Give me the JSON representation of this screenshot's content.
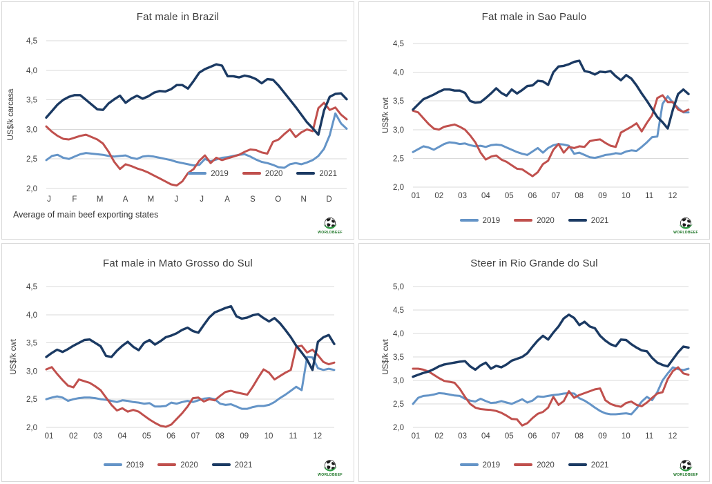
{
  "colors": {
    "2019": "#6494c7",
    "2020": "#c0504d",
    "2021": "#1b3a63",
    "grid": "#d9d9d9",
    "text": "#404040",
    "panel_border": "#d8d8d8",
    "logo_green": "#15701f"
  },
  "logo": {
    "icon": "globe-logo-icon",
    "caption": "WORLDBEEF"
  },
  "chart_data": [
    {
      "type": "line",
      "title": "Fat male in Brazil",
      "ylabel": "US$/k carcasa",
      "xlabel": "",
      "ylim": [
        2.0,
        4.5
      ],
      "ytick_step": 0.5,
      "yticklabels": [
        "2,0",
        "2,5",
        "3,0",
        "3,5",
        "4,0",
        "4,5"
      ],
      "xticklabels": [
        "J",
        "F",
        "M",
        "A",
        "M",
        "J",
        "J",
        "A",
        "S",
        "O",
        "N",
        "D"
      ],
      "grid": "horizontal",
      "legend_position": "inside-bottom-right",
      "footnote": "Average of main beef exporting states",
      "series": [
        {
          "name": "2019",
          "values": [
            2.48,
            2.55,
            2.57,
            2.52,
            2.5,
            2.54,
            2.58,
            2.6,
            2.59,
            2.58,
            2.57,
            2.55,
            2.54,
            2.55,
            2.56,
            2.52,
            2.5,
            2.54,
            2.55,
            2.54,
            2.52,
            2.5,
            2.48,
            2.45,
            2.43,
            2.41,
            2.39,
            2.4,
            2.5,
            2.46,
            2.49,
            2.52,
            2.53,
            2.55,
            2.57,
            2.58,
            2.54,
            2.49,
            2.45,
            2.43,
            2.4,
            2.36,
            2.35,
            2.41,
            2.43,
            2.41,
            2.44,
            2.48,
            2.55,
            2.67,
            2.9,
            3.27,
            3.1,
            3.01
          ]
        },
        {
          "name": "2020",
          "values": [
            3.05,
            2.96,
            2.89,
            2.84,
            2.83,
            2.86,
            2.89,
            2.91,
            2.87,
            2.83,
            2.76,
            2.62,
            2.45,
            2.33,
            2.41,
            2.38,
            2.34,
            2.31,
            2.27,
            2.22,
            2.17,
            2.12,
            2.07,
            2.05,
            2.12,
            2.26,
            2.33,
            2.47,
            2.56,
            2.43,
            2.52,
            2.48,
            2.51,
            2.54,
            2.57,
            2.62,
            2.66,
            2.65,
            2.61,
            2.59,
            2.79,
            2.83,
            2.92,
            3.0,
            2.87,
            2.95,
            3.0,
            2.97,
            3.36,
            3.45,
            3.33,
            3.37,
            3.25,
            3.17
          ]
        },
        {
          "name": "2021",
          "values": [
            3.2,
            3.31,
            3.42,
            3.5,
            3.55,
            3.58,
            3.58,
            3.5,
            3.42,
            3.34,
            3.33,
            3.44,
            3.51,
            3.57,
            3.45,
            3.52,
            3.57,
            3.52,
            3.56,
            3.62,
            3.65,
            3.64,
            3.68,
            3.75,
            3.75,
            3.69,
            3.82,
            3.96,
            4.02,
            4.06,
            4.1,
            4.08,
            3.9,
            3.9,
            3.88,
            3.91,
            3.89,
            3.85,
            3.78,
            3.85,
            3.84,
            3.74,
            3.62,
            3.5,
            3.38,
            3.25,
            3.12,
            3.02,
            2.91,
            3.32,
            3.55,
            3.6,
            3.61,
            3.51
          ]
        }
      ]
    },
    {
      "type": "line",
      "title": "Fat male in Sao Paulo",
      "ylabel": "US$/k cwt",
      "xlabel": "",
      "ylim": [
        2.0,
        4.5
      ],
      "ytick_step": 0.5,
      "yticklabels": [
        "2,0",
        "2,5",
        "3,0",
        "3,5",
        "4,0",
        "4,5"
      ],
      "xticklabels": [
        "01",
        "02",
        "03",
        "04",
        "05",
        "06",
        "07",
        "08",
        "09",
        "10",
        "11",
        "12"
      ],
      "grid": "horizontal",
      "legend_position": "below-center",
      "series": [
        {
          "name": "2019",
          "values": [
            2.61,
            2.66,
            2.71,
            2.69,
            2.65,
            2.7,
            2.75,
            2.78,
            2.77,
            2.75,
            2.76,
            2.73,
            2.71,
            2.72,
            2.7,
            2.73,
            2.74,
            2.73,
            2.69,
            2.65,
            2.61,
            2.58,
            2.56,
            2.62,
            2.68,
            2.6,
            2.68,
            2.73,
            2.75,
            2.74,
            2.72,
            2.58,
            2.6,
            2.56,
            2.52,
            2.51,
            2.53,
            2.56,
            2.57,
            2.59,
            2.58,
            2.62,
            2.64,
            2.63,
            2.7,
            2.78,
            2.87,
            2.88,
            3.45,
            3.58,
            3.47,
            3.38,
            3.3,
            3.3
          ]
        },
        {
          "name": "2020",
          "values": [
            3.33,
            3.3,
            3.2,
            3.1,
            3.02,
            3.0,
            3.05,
            3.07,
            3.09,
            3.05,
            3.0,
            2.9,
            2.78,
            2.6,
            2.48,
            2.53,
            2.55,
            2.48,
            2.44,
            2.38,
            2.32,
            2.31,
            2.25,
            2.19,
            2.26,
            2.4,
            2.46,
            2.65,
            2.75,
            2.6,
            2.7,
            2.68,
            2.71,
            2.7,
            2.8,
            2.82,
            2.83,
            2.77,
            2.72,
            2.7,
            2.95,
            3.0,
            3.05,
            3.11,
            2.97,
            3.12,
            3.25,
            3.55,
            3.6,
            3.48,
            3.48,
            3.35,
            3.31,
            3.35
          ]
        },
        {
          "name": "2021",
          "values": [
            3.35,
            3.44,
            3.53,
            3.57,
            3.61,
            3.66,
            3.7,
            3.7,
            3.68,
            3.68,
            3.64,
            3.5,
            3.47,
            3.48,
            3.55,
            3.63,
            3.72,
            3.64,
            3.59,
            3.7,
            3.63,
            3.69,
            3.76,
            3.77,
            3.85,
            3.84,
            3.78,
            4.0,
            4.1,
            4.11,
            4.14,
            4.18,
            4.2,
            4.02,
            4.0,
            3.96,
            4.01,
            4.0,
            4.02,
            3.93,
            3.86,
            3.95,
            3.89,
            3.77,
            3.63,
            3.5,
            3.36,
            3.22,
            3.13,
            3.02,
            3.35,
            3.62,
            3.7,
            3.62
          ]
        }
      ]
    },
    {
      "type": "line",
      "title": "Fat male in Mato Grosso do Sul",
      "ylabel": "US$/k cwt",
      "xlabel": "",
      "ylim": [
        2.0,
        4.5
      ],
      "ytick_step": 0.5,
      "yticklabels": [
        "2,0",
        "2,5",
        "3,0",
        "3,5",
        "4,0",
        "4,5"
      ],
      "xticklabels": [
        "01",
        "02",
        "03",
        "04",
        "05",
        "06",
        "07",
        "08",
        "09",
        "10",
        "11",
        "12"
      ],
      "grid": "horizontal",
      "legend_position": "below-center",
      "series": [
        {
          "name": "2019",
          "values": [
            2.5,
            2.53,
            2.55,
            2.53,
            2.47,
            2.5,
            2.52,
            2.53,
            2.53,
            2.52,
            2.5,
            2.49,
            2.47,
            2.45,
            2.48,
            2.47,
            2.45,
            2.44,
            2.42,
            2.43,
            2.37,
            2.37,
            2.38,
            2.44,
            2.42,
            2.45,
            2.47,
            2.45,
            2.48,
            2.51,
            2.52,
            2.5,
            2.42,
            2.4,
            2.41,
            2.37,
            2.33,
            2.33,
            2.36,
            2.38,
            2.38,
            2.4,
            2.45,
            2.52,
            2.58,
            2.65,
            2.72,
            2.66,
            3.25,
            3.24,
            3.05,
            3.02,
            3.04,
            3.02
          ]
        },
        {
          "name": "2020",
          "values": [
            3.03,
            3.07,
            2.95,
            2.84,
            2.74,
            2.71,
            2.85,
            2.82,
            2.79,
            2.73,
            2.66,
            2.53,
            2.4,
            2.3,
            2.34,
            2.28,
            2.31,
            2.28,
            2.21,
            2.14,
            2.08,
            2.03,
            2.01,
            2.05,
            2.15,
            2.25,
            2.37,
            2.52,
            2.53,
            2.46,
            2.5,
            2.48,
            2.56,
            2.63,
            2.65,
            2.62,
            2.6,
            2.58,
            2.72,
            2.88,
            3.03,
            2.97,
            2.85,
            2.91,
            2.97,
            3.02,
            3.43,
            3.45,
            3.33,
            3.38,
            3.28,
            3.16,
            3.12,
            3.15
          ]
        },
        {
          "name": "2021",
          "values": [
            3.25,
            3.32,
            3.38,
            3.34,
            3.39,
            3.45,
            3.5,
            3.55,
            3.56,
            3.5,
            3.44,
            3.27,
            3.25,
            3.36,
            3.45,
            3.52,
            3.43,
            3.37,
            3.5,
            3.55,
            3.47,
            3.53,
            3.6,
            3.63,
            3.67,
            3.73,
            3.77,
            3.71,
            3.68,
            3.82,
            3.95,
            4.04,
            4.08,
            4.12,
            4.15,
            3.97,
            3.93,
            3.95,
            3.99,
            4.01,
            3.94,
            3.88,
            3.94,
            3.85,
            3.73,
            3.6,
            3.45,
            3.33,
            3.2,
            3.02,
            3.52,
            3.6,
            3.64,
            3.48
          ]
        }
      ]
    },
    {
      "type": "line",
      "title": "Steer in Rio Grande do Sul",
      "ylabel": "US$/k cwt",
      "xlabel": "",
      "ylim": [
        2.0,
        5.0
      ],
      "ytick_step": 0.5,
      "yticklabels": [
        "2,0",
        "2,5",
        "3,0",
        "3,5",
        "4,0",
        "4,5",
        "5,0"
      ],
      "xticklabels": [
        "01",
        "02",
        "03",
        "04",
        "05",
        "06",
        "07",
        "08",
        "09",
        "10",
        "11",
        "12"
      ],
      "grid": "horizontal",
      "legend_position": "below-center",
      "series": [
        {
          "name": "2019",
          "values": [
            2.5,
            2.63,
            2.67,
            2.68,
            2.7,
            2.73,
            2.72,
            2.7,
            2.68,
            2.67,
            2.61,
            2.57,
            2.55,
            2.61,
            2.56,
            2.52,
            2.53,
            2.56,
            2.53,
            2.5,
            2.55,
            2.6,
            2.53,
            2.57,
            2.66,
            2.65,
            2.67,
            2.69,
            2.7,
            2.72,
            2.73,
            2.72,
            2.62,
            2.57,
            2.5,
            2.42,
            2.35,
            2.3,
            2.28,
            2.28,
            2.29,
            2.3,
            2.28,
            2.4,
            2.55,
            2.65,
            2.58,
            2.75,
            3.0,
            3.15,
            3.28,
            3.24,
            3.22,
            3.25
          ]
        },
        {
          "name": "2020",
          "values": [
            3.25,
            3.25,
            3.23,
            3.19,
            3.12,
            3.05,
            2.99,
            2.97,
            2.95,
            2.82,
            2.65,
            2.5,
            2.42,
            2.39,
            2.38,
            2.37,
            2.35,
            2.31,
            2.25,
            2.18,
            2.17,
            2.04,
            2.09,
            2.2,
            2.29,
            2.33,
            2.42,
            2.65,
            2.48,
            2.56,
            2.77,
            2.63,
            2.69,
            2.73,
            2.77,
            2.81,
            2.83,
            2.58,
            2.5,
            2.46,
            2.44,
            2.52,
            2.55,
            2.48,
            2.45,
            2.53,
            2.63,
            2.72,
            2.75,
            3.03,
            3.2,
            3.28,
            3.15,
            3.12
          ]
        },
        {
          "name": "2021",
          "values": [
            3.08,
            3.12,
            3.16,
            3.19,
            3.24,
            3.3,
            3.34,
            3.36,
            3.38,
            3.4,
            3.41,
            3.3,
            3.23,
            3.32,
            3.38,
            3.25,
            3.31,
            3.28,
            3.34,
            3.42,
            3.46,
            3.5,
            3.58,
            3.72,
            3.85,
            3.95,
            3.87,
            4.02,
            4.15,
            4.32,
            4.4,
            4.33,
            4.18,
            4.25,
            4.15,
            4.11,
            3.95,
            3.85,
            3.77,
            3.73,
            3.87,
            3.86,
            3.77,
            3.7,
            3.64,
            3.62,
            3.48,
            3.38,
            3.33,
            3.3,
            3.45,
            3.6,
            3.72,
            3.7
          ]
        }
      ]
    }
  ]
}
